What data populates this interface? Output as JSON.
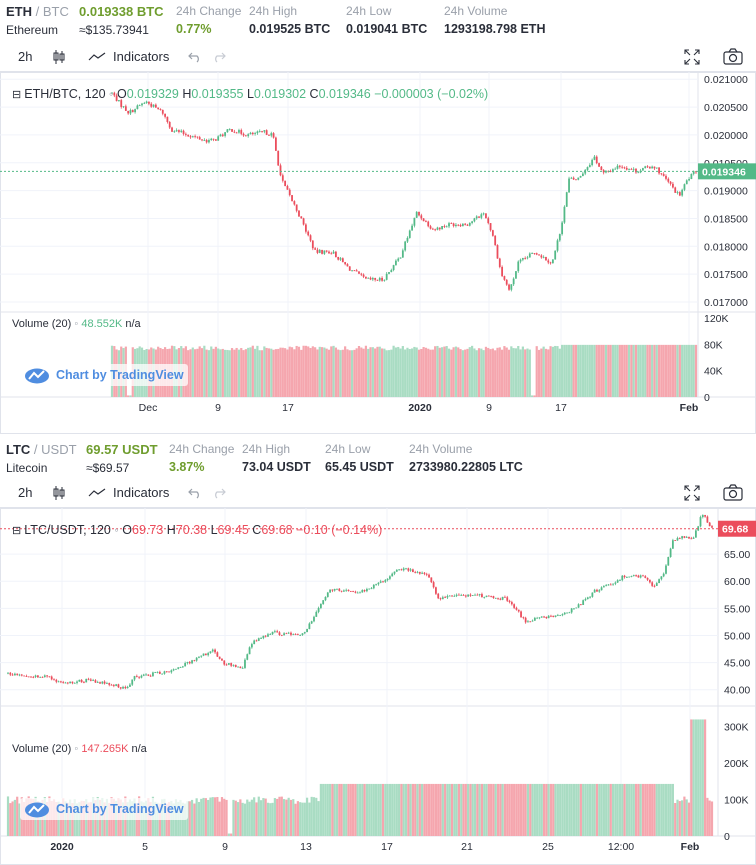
{
  "eth": {
    "ticker": {
      "base": "ETH",
      "slash": " / ",
      "quote": "BTC",
      "name": "Ethereum",
      "price": "0.019338 BTC",
      "usd_approx": "≈$135.73941",
      "change_label": "24h Change",
      "change_value": "0.77%",
      "high_label": "24h High",
      "high_value": "0.019525 BTC",
      "low_label": "24h Low",
      "low_value": "0.019041 BTC",
      "volume_label": "24h Volume",
      "volume_value": "1293198.798 ETH"
    },
    "toolbar": {
      "interval": "2h",
      "indicators": "Indicators"
    },
    "legend": {
      "symbol": "ETH/BTC, 120",
      "o_label": "O",
      "o_value": "0.019329",
      "h_label": "H",
      "h_value": "0.019355",
      "l_label": "L",
      "l_value": "0.019302",
      "c_label": "C",
      "c_value": "0.019346",
      "change": "−0.000003 (−0.02%)"
    },
    "volume_legend": {
      "label": "Volume (20)",
      "value": "48.552K",
      "na": "n/a"
    },
    "watermark": "Chart by TradingView"
  },
  "ltc": {
    "ticker": {
      "base": "LTC",
      "slash": " / ",
      "quote": "USDT",
      "name": "Litecoin",
      "price": "69.57 USDT",
      "usd_approx": "≈$69.57",
      "change_label": "24h Change",
      "change_value": "3.87%",
      "high_label": "24h High",
      "high_value": "73.04 USDT",
      "low_label": "24h Low",
      "low_value": "65.45 USDT",
      "volume_label": "24h Volume",
      "volume_value": "2733980.22805 LTC"
    },
    "toolbar": {
      "interval": "2h",
      "indicators": "Indicators"
    },
    "legend": {
      "symbol": "LTC/USDT, 120",
      "o_label": "O",
      "o_value": "69.73",
      "h_label": "H",
      "h_value": "70.38",
      "l_label": "L",
      "l_value": "69.45",
      "c_label": "C",
      "c_value": "69.68",
      "change": "−0.10 (−0.14%)"
    },
    "volume_legend": {
      "label": "Volume (20)",
      "value": "147.265K",
      "na": "n/a"
    },
    "watermark": "Chart by TradingView"
  },
  "colors": {
    "up": "#53b987",
    "down": "#eb4d5c",
    "up_vol": "#a9dcc3",
    "down_vol": "#f5a6ae",
    "accent_green": "#6f9d2e",
    "grid": "#f0f3fa",
    "watermark": "#4f8de0"
  },
  "chart_data": [
    {
      "type": "candlestick",
      "title": "ETH/BTC, 120",
      "x_ticks": [
        "Dec",
        "9",
        "17",
        "2020",
        "9",
        "17",
        "Feb"
      ],
      "y_ticks": [
        "0.021000",
        "0.020500",
        "0.020000",
        "0.019500",
        "0.019000",
        "0.018500",
        "0.018000",
        "0.017500",
        "0.017000"
      ],
      "ylim": [
        0.01682,
        0.02113
      ],
      "last_price": "0.019346",
      "close_path": [
        [
          3,
          0.02075
        ],
        [
          4,
          0.02055
        ],
        [
          5,
          0.0204
        ],
        [
          7,
          0.0206
        ],
        [
          9,
          0.0204
        ],
        [
          10,
          0.0201
        ],
        [
          12,
          0.02
        ],
        [
          14,
          0.0199
        ],
        [
          15,
          0.0199
        ],
        [
          17,
          0.0201
        ],
        [
          19,
          0.02
        ],
        [
          21,
          0.02005
        ],
        [
          22,
          0.02
        ],
        [
          23,
          0.0192
        ],
        [
          25,
          0.0186
        ],
        [
          27,
          0.0179
        ],
        [
          29,
          0.0179
        ],
        [
          31,
          0.0176
        ],
        [
          33,
          0.0174
        ],
        [
          35,
          0.0174
        ],
        [
          37,
          0.0178
        ],
        [
          38,
          0.0182
        ],
        [
          39,
          0.0186
        ],
        [
          41,
          0.0183
        ],
        [
          43,
          0.0184
        ],
        [
          45,
          0.0184
        ],
        [
          47,
          0.0186
        ],
        [
          48,
          0.0182
        ],
        [
          49,
          0.0175
        ],
        [
          50,
          0.0172
        ],
        [
          51,
          0.0177
        ],
        [
          53,
          0.0179
        ],
        [
          55,
          0.0177
        ],
        [
          56,
          0.0183
        ],
        [
          57,
          0.0192
        ],
        [
          58,
          0.0192
        ],
        [
          59,
          0.0194
        ],
        [
          60,
          0.0196
        ],
        [
          61,
          0.0193
        ],
        [
          63,
          0.01945
        ],
        [
          65,
          0.01935
        ],
        [
          67,
          0.01945
        ],
        [
          69,
          0.0191
        ],
        [
          70,
          0.0189
        ],
        [
          71,
          0.0192
        ],
        [
          72,
          0.01935
        ]
      ],
      "volume_ylim": [
        0,
        120000
      ],
      "volume_ticks": [
        "120K",
        "80K",
        "40K",
        "0"
      ],
      "last_volume": "48.552K"
    },
    {
      "type": "candlestick",
      "title": "LTC/USDT, 120",
      "x_ticks": [
        "2020",
        "5",
        "9",
        "13",
        "17",
        "21",
        "25",
        "12:00",
        "Feb"
      ],
      "y_ticks": [
        "65.00",
        "60.00",
        "55.00",
        "50.00",
        "45.00",
        "40.00"
      ],
      "ylim": [
        37.0,
        73.5
      ],
      "last_price": "69.68",
      "close_path": [
        [
          0,
          43.0
        ],
        [
          2,
          42.6
        ],
        [
          4,
          42.4
        ],
        [
          5,
          41.6
        ],
        [
          6,
          41.3
        ],
        [
          8,
          41.7
        ],
        [
          10,
          41.2
        ],
        [
          12,
          40.2
        ],
        [
          13,
          42.3
        ],
        [
          15,
          43.0
        ],
        [
          17,
          43.7
        ],
        [
          19,
          45.5
        ],
        [
          21,
          47.2
        ],
        [
          22,
          44.8
        ],
        [
          24,
          44.2
        ],
        [
          25,
          49.0
        ],
        [
          27,
          50.5
        ],
        [
          29,
          50.2
        ],
        [
          30,
          49.8
        ],
        [
          32,
          55.5
        ],
        [
          33,
          58.5
        ],
        [
          35,
          58.3
        ],
        [
          36,
          58.0
        ],
        [
          38,
          59.6
        ],
        [
          40,
          62.4
        ],
        [
          41,
          62.2
        ],
        [
          43,
          61.0
        ],
        [
          44,
          57.0
        ],
        [
          46,
          57.2
        ],
        [
          48,
          57.4
        ],
        [
          50,
          57.0
        ],
        [
          51,
          56.7
        ],
        [
          53,
          52.5
        ],
        [
          54,
          53.2
        ],
        [
          56,
          53.4
        ],
        [
          58,
          55.0
        ],
        [
          60,
          58.2
        ],
        [
          62,
          59.6
        ],
        [
          63,
          61.0
        ],
        [
          65,
          61.0
        ],
        [
          66,
          59.0
        ],
        [
          67,
          61.0
        ],
        [
          68,
          67.6
        ],
        [
          69,
          68.2
        ],
        [
          70,
          67.6
        ],
        [
          71,
          72.4
        ],
        [
          72,
          69.68
        ]
      ],
      "volume_ylim": [
        0,
        340000
      ],
      "volume_ticks": [
        "300K",
        "200K",
        "100K",
        "0"
      ],
      "last_volume": "147.265K"
    }
  ]
}
